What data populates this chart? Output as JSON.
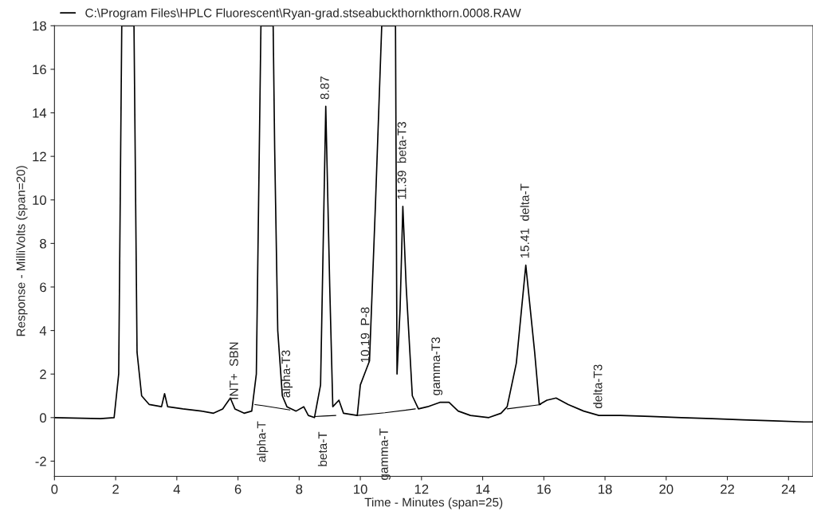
{
  "chart_data": {
    "type": "line",
    "xlabel": "Time - Minutes (span=25)",
    "ylabel": "Response - MilliVolts (span=20)",
    "xlim": [
      0,
      24.8
    ],
    "ylim": [
      -2.7,
      18
    ],
    "xticks": [
      0,
      2,
      4,
      6,
      8,
      10,
      12,
      14,
      16,
      18,
      20,
      22,
      24
    ],
    "yticks": [
      -2,
      0,
      2,
      4,
      6,
      8,
      10,
      12,
      14,
      16,
      18
    ],
    "grid": false,
    "legend": "top left",
    "marker": "none",
    "line_style": "solid",
    "series": [
      {
        "name": "C:\\Program Files\\HPLC Fluorescent\\Ryan-grad.stseabuckthornkthorn.0008.RAW",
        "color": "#000000",
        "x": [
          0,
          1.5,
          1.95,
          2.1,
          2.2,
          2.6,
          2.7,
          2.85,
          3.1,
          3.5,
          3.6,
          3.7,
          4.2,
          4.8,
          5.2,
          5.5,
          5.75,
          5.9,
          6.2,
          6.45,
          6.6,
          6.75,
          7.15,
          7.2,
          7.3,
          7.45,
          7.6,
          7.9,
          8.15,
          8.3,
          8.5,
          8.7,
          8.87,
          9.0,
          9.1,
          9.3,
          9.45,
          9.9,
          10.0,
          10.19,
          10.3,
          10.5,
          10.7,
          11.15,
          11.2,
          11.3,
          11.39,
          11.5,
          11.7,
          11.9,
          12.2,
          12.6,
          12.9,
          13.2,
          13.6,
          14.2,
          14.6,
          14.8,
          15.1,
          15.41,
          15.7,
          15.85,
          16.1,
          16.4,
          16.8,
          17.3,
          17.8,
          18.5,
          19.5,
          20.5,
          21.5,
          22.5,
          23.5,
          24.5,
          24.8
        ],
        "values": [
          0.0,
          -0.05,
          0.0,
          2,
          18,
          18,
          3,
          1.0,
          0.6,
          0.5,
          1.1,
          0.5,
          0.4,
          0.3,
          0.2,
          0.4,
          0.9,
          0.4,
          0.2,
          0.3,
          2,
          18,
          18,
          12.3,
          4,
          1.0,
          0.5,
          0.3,
          0.5,
          0.1,
          0.0,
          1.5,
          14.3,
          6,
          0.5,
          0.8,
          0.2,
          0.1,
          1.5,
          2.2,
          2.6,
          10,
          18,
          18,
          2,
          5,
          9.7,
          6,
          1.0,
          0.4,
          0.5,
          0.7,
          0.7,
          0.3,
          0.1,
          0.0,
          0.2,
          0.5,
          2.5,
          7.0,
          3,
          0.6,
          0.8,
          0.9,
          0.6,
          0.3,
          0.1,
          0.1,
          0.05,
          0.0,
          -0.05,
          -0.1,
          -0.15,
          -0.2,
          -0.2
        ]
      },
      {
        "color": "#000000",
        "x": [
          6.55,
          6.8,
          7.7
        ],
        "values": [
          0.6,
          0.55,
          0.35
        ]
      },
      {
        "color": "#000000",
        "x": [
          8.5,
          8.8,
          9.2
        ],
        "values": [
          0.05,
          0.07,
          0.1
        ]
      },
      {
        "color": "#000000",
        "x": [
          9.9,
          10.8,
          11.8
        ],
        "values": [
          0.1,
          0.22,
          0.4
        ]
      },
      {
        "color": "#000000",
        "x": [
          14.8,
          15.9
        ],
        "values": [
          0.4,
          0.6
        ]
      }
    ],
    "annotations": [
      {
        "text": "INT+  SBN",
        "x": 5.9,
        "y": 0.5
      },
      {
        "text": "alpha-T",
        "x": 6.8,
        "y": 0.55
      },
      {
        "text": "alpha-T3",
        "x": 7.6,
        "y": 0.6
      },
      {
        "text": "8.87",
        "x": 8.87,
        "y": 14.3
      },
      {
        "text": "beta-T",
        "x": 8.8,
        "y": 0.07
      },
      {
        "text": "10.19  P-8",
        "x": 10.19,
        "y": 2.2
      },
      {
        "text": "gamma-T",
        "x": 10.8,
        "y": 0.22
      },
      {
        "text": "11.39  beta-T3",
        "x": 11.39,
        "y": 9.7
      },
      {
        "text": "gamma-T3",
        "x": 12.5,
        "y": 0.7
      },
      {
        "text": "15.41  delta-T",
        "x": 15.41,
        "y": 7.0
      },
      {
        "text": "delta-T3",
        "x": 17.8,
        "y": 0.1
      }
    ]
  }
}
